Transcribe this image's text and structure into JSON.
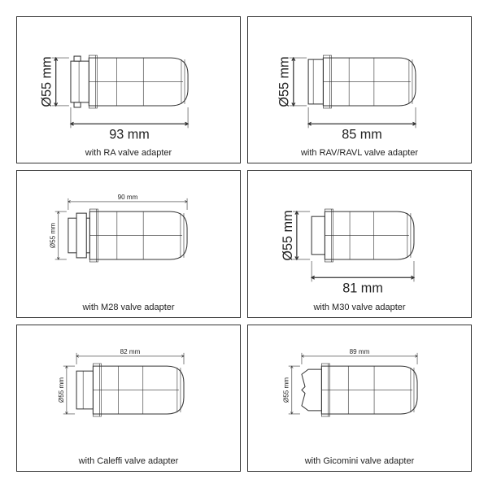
{
  "background_color": "#ffffff",
  "border_color": "#333333",
  "caption_fontsize": 11,
  "big_label_fontsize": 16,
  "small_label_fontsize": 8,
  "diameter_label": "Ø55 mm",
  "diameter_small": "Ø55 mm",
  "cells": [
    {
      "caption": "with RA valve adapter",
      "length_label": "93 mm",
      "style": "big",
      "body_width": 120,
      "adapter_kind": "ra"
    },
    {
      "caption": "with RAV/RAVL valve adapter",
      "length_label": "85 mm",
      "style": "big",
      "body_width": 112,
      "adapter_kind": "ravl"
    },
    {
      "caption": "with M28 valve adapter",
      "length_label": "90 mm",
      "style": "small",
      "body_width": 118,
      "adapter_kind": "m28"
    },
    {
      "caption": "with M30 valve adapter",
      "length_label": "81 mm",
      "style": "big",
      "body_width": 108,
      "adapter_kind": "m30"
    },
    {
      "caption": "with Caleffi valve adapter",
      "length_label": "82 mm",
      "style": "small",
      "body_width": 110,
      "adapter_kind": "caleffi"
    },
    {
      "caption": "with Gicomini valve adapter",
      "length_label": "89 mm",
      "style": "small",
      "body_width": 116,
      "adapter_kind": "gicomini"
    }
  ]
}
